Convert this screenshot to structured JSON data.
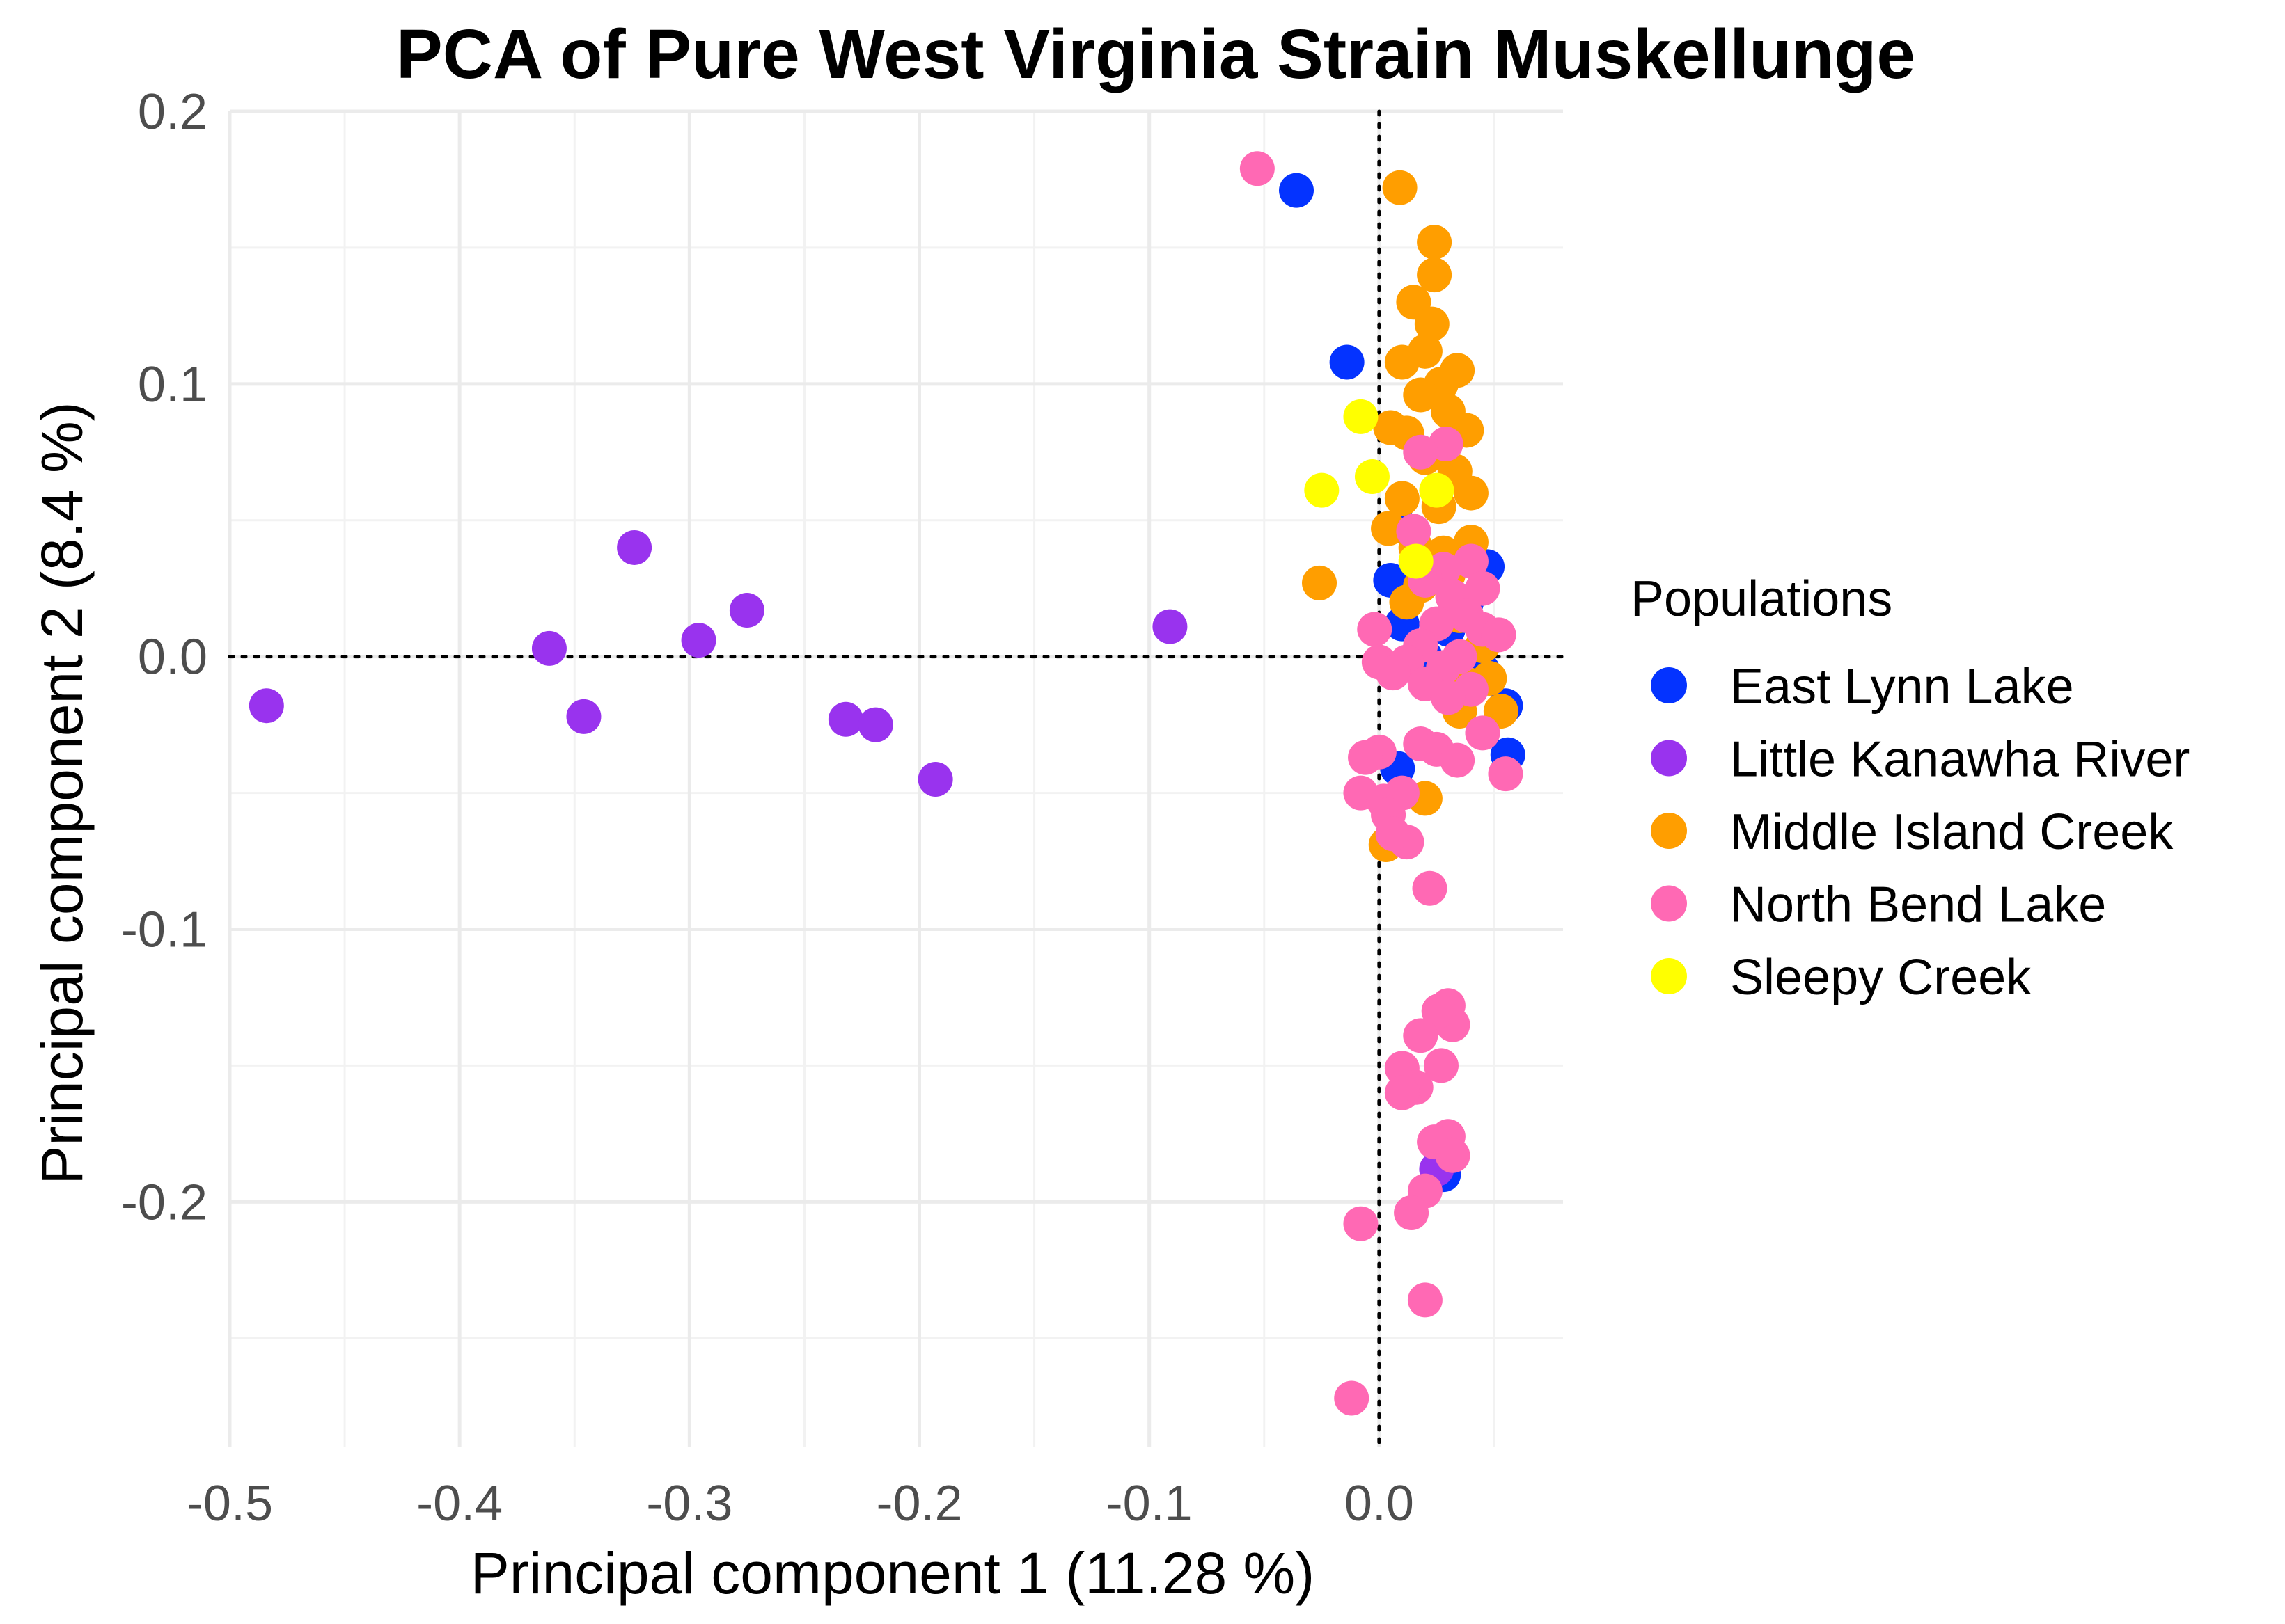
{
  "chart_data": {
    "type": "scatter",
    "title": "PCA of Pure West Virginia Strain Muskellunge",
    "xlabel": "Principal component 1 (11.28 %)",
    "ylabel": "Principal component 2 (8.4 %)",
    "xlim": [
      -0.5,
      0.08
    ],
    "ylim": [
      -0.29,
      0.2
    ],
    "xticks": [
      -0.5,
      -0.4,
      -0.3,
      -0.2,
      -0.1,
      0.0
    ],
    "xtick_labels": [
      "-0.5",
      "-0.4",
      "-0.3",
      "-0.2",
      "-0.1",
      "0.0"
    ],
    "yticks": [
      -0.2,
      -0.1,
      0.0,
      0.1,
      0.2
    ],
    "ytick_labels": [
      "-0.2",
      "-0.1",
      "0.0",
      "0.1",
      "0.2"
    ],
    "reference_lines": {
      "x": 0,
      "y": 0
    },
    "grid": true,
    "legend_title": "Populations",
    "legend_position": "right",
    "series": [
      {
        "name": "East Lynn Lake",
        "color": "#0433ff",
        "points": [
          [
            -0.036,
            0.171
          ],
          [
            -0.014,
            0.108
          ],
          [
            0.009,
            0.048
          ],
          [
            0.005,
            0.028
          ],
          [
            0.047,
            0.033
          ],
          [
            0.055,
            -0.018
          ],
          [
            0.056,
            -0.036
          ],
          [
            0.008,
            -0.041
          ],
          [
            0.01,
            0.012
          ],
          [
            0.03,
            0.01
          ],
          [
            0.038,
            0.02
          ],
          [
            0.045,
            -0.005
          ],
          [
            0.028,
            -0.19
          ],
          [
            0.02,
            0.0
          ],
          [
            0.04,
            0.0
          ]
        ]
      },
      {
        "name": "Little Kanawha River",
        "color": "#9933ee",
        "points": [
          [
            -0.484,
            -0.018
          ],
          [
            -0.361,
            0.003
          ],
          [
            -0.346,
            -0.022
          ],
          [
            -0.324,
            0.04
          ],
          [
            -0.296,
            0.006
          ],
          [
            -0.275,
            0.017
          ],
          [
            -0.232,
            -0.023
          ],
          [
            -0.219,
            -0.025
          ],
          [
            -0.193,
            -0.045
          ],
          [
            -0.091,
            0.011
          ],
          [
            0.025,
            -0.188
          ]
        ]
      },
      {
        "name": "Middle Island Creek",
        "color": "#ff9e00",
        "points": [
          [
            0.009,
            0.172
          ],
          [
            0.024,
            0.152
          ],
          [
            0.024,
            0.14
          ],
          [
            0.015,
            0.13
          ],
          [
            0.023,
            0.122
          ],
          [
            0.01,
            0.108
          ],
          [
            0.02,
            0.112
          ],
          [
            0.034,
            0.105
          ],
          [
            0.027,
            0.1
          ],
          [
            0.018,
            0.096
          ],
          [
            0.03,
            0.09
          ],
          [
            0.038,
            0.083
          ],
          [
            0.012,
            0.082
          ],
          [
            0.005,
            0.084
          ],
          [
            0.02,
            0.073
          ],
          [
            0.033,
            0.068
          ],
          [
            0.04,
            0.06
          ],
          [
            0.026,
            0.055
          ],
          [
            0.01,
            0.058
          ],
          [
            0.004,
            0.047
          ],
          [
            0.016,
            0.04
          ],
          [
            0.028,
            0.038
          ],
          [
            0.04,
            0.042
          ],
          [
            -0.026,
            0.027
          ],
          [
            0.018,
            0.026
          ],
          [
            0.035,
            0.015
          ],
          [
            0.045,
            0.004
          ],
          [
            0.053,
            -0.02
          ],
          [
            0.048,
            -0.008
          ],
          [
            0.038,
            -0.01
          ],
          [
            0.035,
            -0.02
          ],
          [
            0.02,
            -0.052
          ],
          [
            0.003,
            -0.069
          ],
          [
            0.012,
            0.02
          ],
          [
            0.03,
            0.03
          ]
        ]
      },
      {
        "name": "North Bend Lake",
        "color": "#ff69b4",
        "points": [
          [
            -0.053,
            0.179
          ],
          [
            0.029,
            0.078
          ],
          [
            0.018,
            0.075
          ],
          [
            0.015,
            0.046
          ],
          [
            0.04,
            0.035
          ],
          [
            0.028,
            0.032
          ],
          [
            0.02,
            0.028
          ],
          [
            0.045,
            0.025
          ],
          [
            0.032,
            0.022
          ],
          [
            0.038,
            0.015
          ],
          [
            0.025,
            0.012
          ],
          [
            0.045,
            0.01
          ],
          [
            0.052,
            0.008
          ],
          [
            -0.002,
            0.01
          ],
          [
            0.035,
            0.0
          ],
          [
            0.018,
            0.004
          ],
          [
            0.028,
            -0.004
          ],
          [
            0.012,
            -0.002
          ],
          [
            0.0,
            -0.002
          ],
          [
            0.006,
            -0.006
          ],
          [
            0.02,
            -0.01
          ],
          [
            0.04,
            -0.012
          ],
          [
            0.03,
            -0.015
          ],
          [
            0.045,
            -0.028
          ],
          [
            0.018,
            -0.032
          ],
          [
            0.025,
            -0.034
          ],
          [
            0.034,
            -0.038
          ],
          [
            0.055,
            -0.043
          ],
          [
            0.0,
            -0.035
          ],
          [
            -0.006,
            -0.037
          ],
          [
            -0.008,
            -0.05
          ],
          [
            0.002,
            -0.053
          ],
          [
            0.01,
            -0.05
          ],
          [
            0.004,
            -0.058
          ],
          [
            0.012,
            -0.068
          ],
          [
            0.006,
            -0.065
          ],
          [
            0.022,
            -0.085
          ],
          [
            0.03,
            -0.128
          ],
          [
            0.032,
            -0.135
          ],
          [
            0.026,
            -0.13
          ],
          [
            0.018,
            -0.139
          ],
          [
            0.027,
            -0.15
          ],
          [
            0.01,
            -0.151
          ],
          [
            0.016,
            -0.158
          ],
          [
            0.01,
            -0.16
          ],
          [
            0.03,
            -0.176
          ],
          [
            0.024,
            -0.178
          ],
          [
            0.032,
            -0.183
          ],
          [
            0.02,
            -0.196
          ],
          [
            0.014,
            -0.204
          ],
          [
            -0.008,
            -0.208
          ],
          [
            0.02,
            -0.236
          ],
          [
            -0.012,
            -0.272
          ]
        ]
      },
      {
        "name": "Sleepy Creek",
        "color": "#ffff00",
        "points": [
          [
            -0.008,
            0.088
          ],
          [
            -0.003,
            0.066
          ],
          [
            -0.025,
            0.061
          ],
          [
            0.025,
            0.061
          ],
          [
            0.016,
            0.035
          ]
        ]
      }
    ]
  }
}
